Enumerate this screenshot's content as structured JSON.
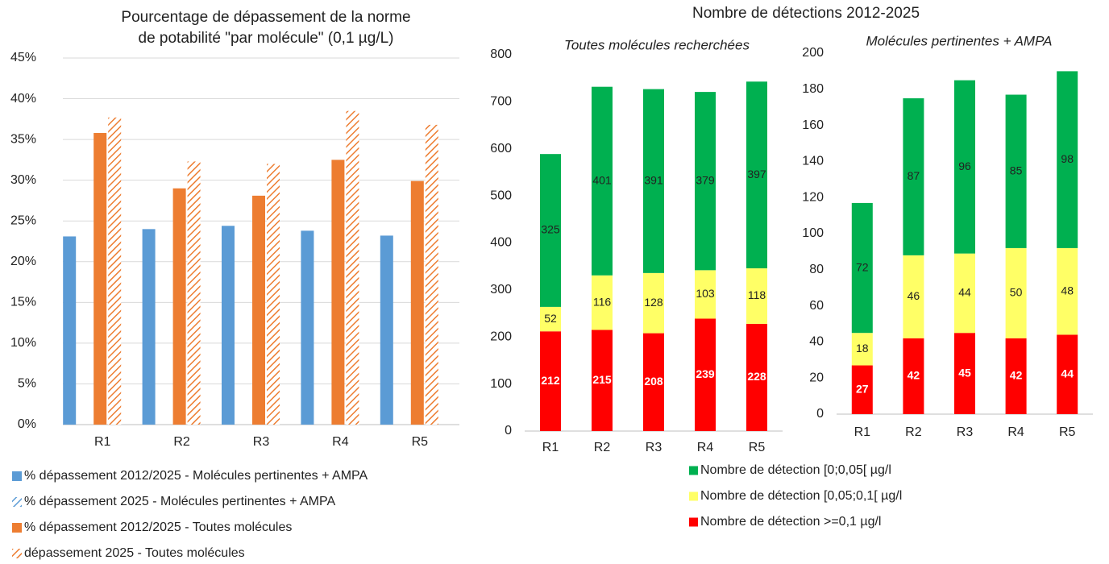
{
  "chart_data": [
    {
      "type": "bar",
      "title": [
        "Pourcentage de dépassement de la norme",
        "de potabilité \"par molécule\" (0,1 µg/L)"
      ],
      "categories": [
        "R1",
        "R2",
        "R3",
        "R4",
        "R5"
      ],
      "series": [
        {
          "name": "% dépassement 2012/2025 - Molécules pertinentes + AMPA",
          "color": "#5b9bd5",
          "hatch": false,
          "values": [
            23.1,
            24.0,
            24.4,
            23.8,
            23.2
          ]
        },
        {
          "name": "% dépassement 2025 - Molécules pertinentes + AMPA",
          "color": "#5b9bd5",
          "hatch": true,
          "values": [
            null,
            null,
            null,
            null,
            null
          ]
        },
        {
          "name": "% dépassement 2012/2025 - Toutes molécules",
          "color": "#ed7d31",
          "hatch": false,
          "values": [
            35.8,
            29.0,
            28.1,
            32.5,
            29.9
          ]
        },
        {
          "name": "dépassement 2025 - Toutes molécules",
          "color": "#ed7d31",
          "hatch": true,
          "values": [
            37.7,
            32.3,
            32.0,
            38.5,
            36.8
          ]
        }
      ],
      "ylim": [
        0,
        45
      ],
      "yticks": [
        {
          "value": 0,
          "label": "0%"
        },
        {
          "value": 5,
          "label": "5%"
        },
        {
          "value": 10,
          "label": "10%"
        },
        {
          "value": 15,
          "label": "15%"
        },
        {
          "value": 20,
          "label": "20%"
        },
        {
          "value": 25,
          "label": "25%"
        },
        {
          "value": 30,
          "label": "30%"
        },
        {
          "value": 35,
          "label": "35%"
        },
        {
          "value": 40,
          "label": "40%"
        },
        {
          "value": 45,
          "label": "45%"
        }
      ],
      "grid": true
    },
    {
      "type": "stacked_bar",
      "title": "Nombre de détections 2012-2025",
      "subtitle": "Toutes molécules recherchées",
      "categories": [
        "R1",
        "R2",
        "R3",
        "R4",
        "R5"
      ],
      "series": [
        {
          "name": "Nombre de détection >=0,1 µg/l",
          "color": "#ff0000",
          "label_color": "#ffffff",
          "values": [
            212,
            215,
            208,
            239,
            228
          ]
        },
        {
          "name": "Nombre de détection [0,05;0,1[ µg/l",
          "color": "#ffff66",
          "values": [
            52,
            116,
            128,
            103,
            118
          ]
        },
        {
          "name": "Nombre de détection [0;0,05[ µg/l",
          "color": "#00b050",
          "values": [
            325,
            401,
            391,
            379,
            397
          ]
        }
      ],
      "ylim": [
        0,
        800
      ],
      "yticks": [
        0,
        100,
        200,
        300,
        400,
        500,
        600,
        700,
        800
      ],
      "grid": false
    },
    {
      "type": "stacked_bar",
      "subtitle": "Molécules pertinentes + AMPA",
      "categories": [
        "R1",
        "R2",
        "R3",
        "R4",
        "R5"
      ],
      "series": [
        {
          "color": "#ff0000",
          "label_color": "#ffffff",
          "values": [
            27,
            42,
            45,
            42,
            44
          ]
        },
        {
          "color": "#ffff66",
          "values": [
            18,
            46,
            44,
            50,
            48
          ]
        },
        {
          "color": "#00b050",
          "values": [
            72,
            87,
            96,
            85,
            98
          ]
        }
      ],
      "ylim": [
        0,
        200
      ],
      "yticks": [
        0,
        20,
        40,
        60,
        80,
        100,
        120,
        140,
        160,
        180,
        200
      ],
      "grid": false
    }
  ]
}
